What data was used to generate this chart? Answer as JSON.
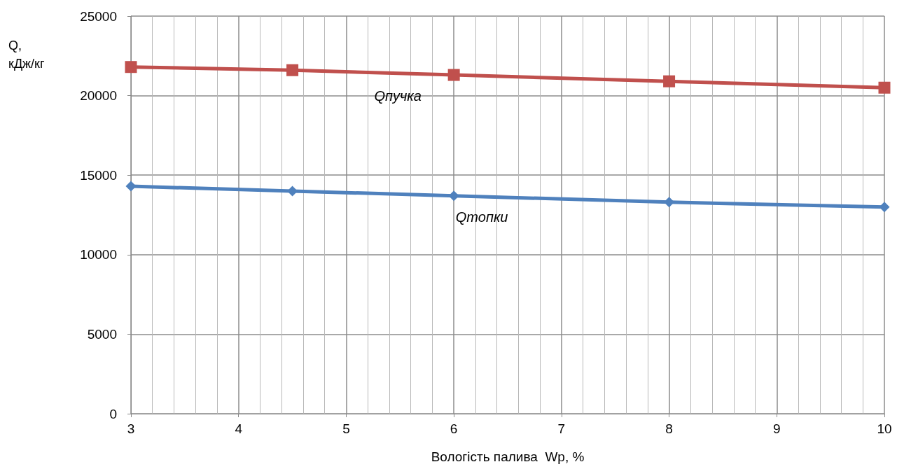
{
  "chart_data": {
    "type": "line",
    "xlabel": "Вологість палива  Wр, %",
    "ylabel": "Q, кДж/кг",
    "x": [
      3,
      4.5,
      6,
      8,
      10
    ],
    "series": [
      {
        "name": "Qпучка",
        "color": "#c0504d",
        "marker": "square",
        "values": [
          21800,
          21600,
          21300,
          20900,
          20500
        ]
      },
      {
        "name": "Qтопки",
        "color": "#4f81bd",
        "marker": "diamond",
        "values": [
          14300,
          14000,
          13700,
          13300,
          13000
        ]
      }
    ],
    "xlim": [
      3,
      10
    ],
    "xticks": [
      3,
      4,
      5,
      6,
      7,
      8,
      9,
      10
    ],
    "ylim": [
      0,
      25000
    ],
    "yticks": [
      0,
      5000,
      10000,
      15000,
      20000,
      25000
    ],
    "grid": true,
    "legend": false,
    "line_style": "solid"
  }
}
